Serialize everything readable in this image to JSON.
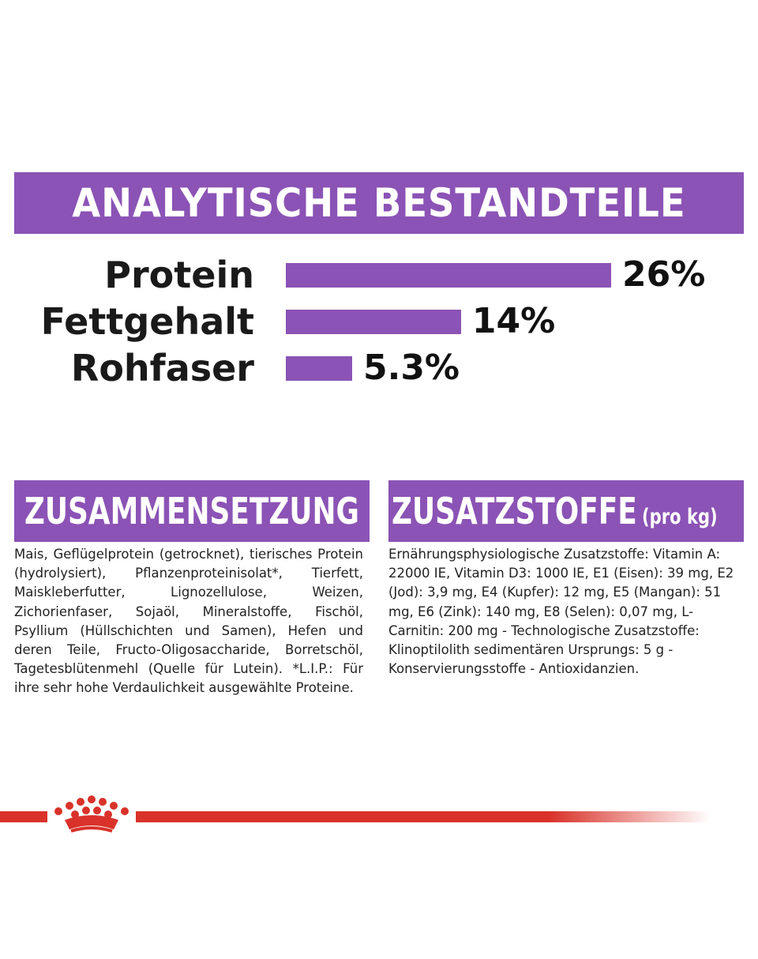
{
  "analytic": {
    "title": "ANALYTISCHE BESTANDTEILE",
    "items": [
      {
        "label": "Protein",
        "value_text": "26%",
        "value": 26
      },
      {
        "label": "Fettgehalt",
        "value_text": "14%",
        "value": 14
      },
      {
        "label": "Rohfaser",
        "value_text": "5.3%",
        "value": 5.3
      }
    ]
  },
  "composition": {
    "title": "ZUSAMMENSETZUNG",
    "text": "Mais, Geflügelprotein (getrocknet), tierisches Protein (hydrolysiert), Pflanzenproteinisolat*, Tierfett, Maiskleberfutter, Lignozellulose, Weizen, Zichorienfaser, Sojaöl, Mineralstoffe, Fischöl, Psyllium (Hüllschichten und Samen), Hefen und deren Teile, Fructo-Oligosaccharide, Borretschöl, Tagetesblütenmehl (Quelle für Lutein). *L.I.P.: Für ihre sehr hohe Verdaulichkeit ausgewählte Proteine."
  },
  "additives": {
    "title": "ZUSATZSTOFFE",
    "title_suffix": "(pro kg)",
    "text": "Ernährungsphysiologische Zusatzstoffe: Vitamin A: 22000 IE, Vitamin D3: 1000 IE, E1 (Eisen): 39 mg, E2 (Jod): 3,9 mg, E4 (Kupfer): 12 mg, E5 (Mangan): 51 mg, E6 (Zink): 140 mg, E8 (Selen): 0,07 mg, L-Carnitin: 200 mg - Technologische Zusatzstoffe: Klinoptilolith sedimentären Ursprungs: 5 g - Konservierungsstoffe - Antioxidanzien."
  },
  "colors": {
    "accent_purple": "#8b53b5",
    "brand_red": "#d9322a"
  },
  "logo": {
    "icon": "crown-icon"
  }
}
